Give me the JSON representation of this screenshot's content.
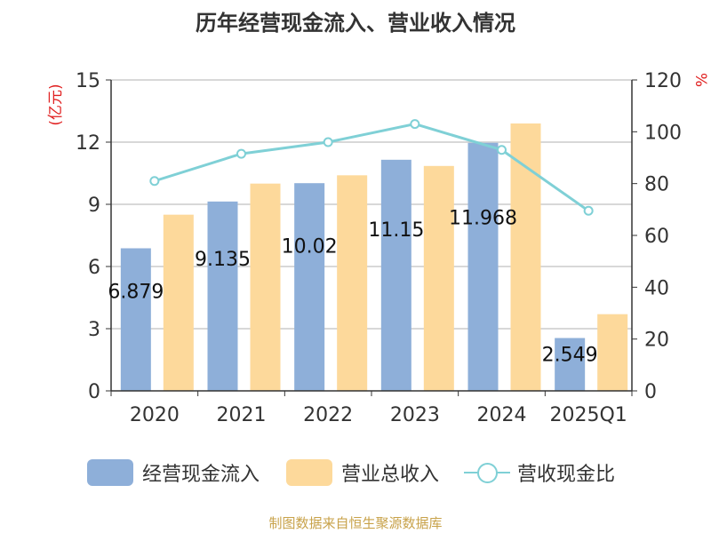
{
  "title": "历年经营现金流入、营业收入情况",
  "left_axis_label": "(亿元)",
  "right_axis_label": "%",
  "source": "制图数据来自恒生聚源数据库",
  "colors": {
    "cash_inflow": "#8eafd9",
    "revenue": "#fdd99b",
    "ratio": "#7fd0d6",
    "axis_label": "#e02020"
  },
  "legend": [
    {
      "name": "经营现金流入",
      "kind": "bar",
      "color": "#8eafd9"
    },
    {
      "name": "营业总收入",
      "kind": "bar",
      "color": "#fdd99b"
    },
    {
      "name": "营收现金比",
      "kind": "line",
      "color": "#7fd0d6"
    }
  ],
  "chart_data": {
    "type": "bar",
    "categories": [
      "2020",
      "2021",
      "2022",
      "2023",
      "2024",
      "2025Q1"
    ],
    "y_left": {
      "range": [
        0,
        15
      ],
      "ticks": [
        0,
        3,
        6,
        9,
        12,
        15
      ]
    },
    "y_right": {
      "range": [
        0,
        120
      ],
      "ticks": [
        0,
        20,
        40,
        60,
        80,
        100,
        120
      ]
    },
    "grid": true,
    "legend_position": "bottom",
    "series": [
      {
        "name": "经营现金流入",
        "type": "bar",
        "axis": "left",
        "values": [
          6.879,
          9.135,
          10.02,
          11.15,
          11.968,
          2.549
        ],
        "labels": [
          "6.879",
          "9.135",
          "10.02",
          "11.15",
          "11.968",
          "2.549"
        ]
      },
      {
        "name": "营业总收入",
        "type": "bar",
        "axis": "left",
        "values": [
          8.5,
          10.0,
          10.4,
          10.85,
          12.9,
          3.7
        ]
      },
      {
        "name": "营收现金比",
        "type": "line",
        "axis": "right",
        "values": [
          81,
          91.5,
          96,
          103,
          93,
          69.5
        ]
      }
    ]
  }
}
